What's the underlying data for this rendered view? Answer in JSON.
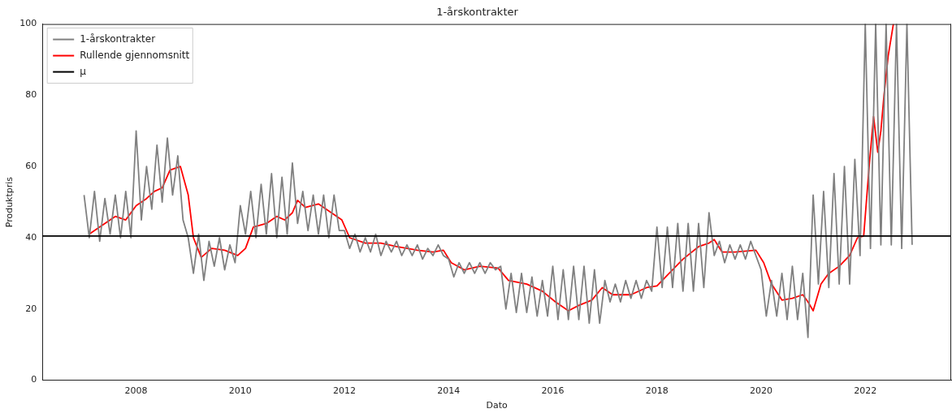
{
  "chart_data": {
    "type": "line",
    "title": "1-årskontrakter",
    "xlabel": "Dato",
    "ylabel": "Produktpris",
    "xlim": [
      2006.2,
      2023.65
    ],
    "xticks": [
      2008,
      2010,
      2012,
      2014,
      2016,
      2018,
      2020,
      2022
    ],
    "ylim": [
      0,
      100
    ],
    "yticks": [
      0,
      20,
      40,
      60,
      80,
      100
    ],
    "grid": false,
    "legend": "top left",
    "marker": "none",
    "line_style": "solid",
    "series": [
      {
        "name": "1-årskontrakter",
        "color": "#808080",
        "x": [
          2007.0,
          2007.1,
          2007.2,
          2007.3,
          2007.4,
          2007.5,
          2007.6,
          2007.7,
          2007.8,
          2007.9,
          2008.0,
          2008.1,
          2008.2,
          2008.3,
          2008.4,
          2008.5,
          2008.6,
          2008.7,
          2008.8,
          2008.9,
          2009.0,
          2009.1,
          2009.2,
          2009.3,
          2009.4,
          2009.5,
          2009.6,
          2009.7,
          2009.8,
          2009.9,
          2010.0,
          2010.1,
          2010.2,
          2010.3,
          2010.4,
          2010.5,
          2010.6,
          2010.7,
          2010.8,
          2010.9,
          2011.0,
          2011.1,
          2011.2,
          2011.3,
          2011.4,
          2011.5,
          2011.6,
          2011.7,
          2011.8,
          2011.9,
          2012.0,
          2012.1,
          2012.2,
          2012.3,
          2012.4,
          2012.5,
          2012.6,
          2012.7,
          2012.8,
          2012.9,
          2013.0,
          2013.1,
          2013.2,
          2013.3,
          2013.4,
          2013.5,
          2013.6,
          2013.7,
          2013.8,
          2013.9,
          2014.0,
          2014.1,
          2014.2,
          2014.3,
          2014.4,
          2014.5,
          2014.6,
          2014.7,
          2014.8,
          2014.9,
          2015.0,
          2015.1,
          2015.2,
          2015.3,
          2015.4,
          2015.5,
          2015.6,
          2015.7,
          2015.8,
          2015.9,
          2016.0,
          2016.1,
          2016.2,
          2016.3,
          2016.4,
          2016.5,
          2016.6,
          2016.7,
          2016.8,
          2016.9,
          2017.0,
          2017.1,
          2017.2,
          2017.3,
          2017.4,
          2017.5,
          2017.6,
          2017.7,
          2017.8,
          2017.9,
          2018.0,
          2018.1,
          2018.2,
          2018.3,
          2018.4,
          2018.5,
          2018.6,
          2018.7,
          2018.8,
          2018.9,
          2019.0,
          2019.1,
          2019.2,
          2019.3,
          2019.4,
          2019.5,
          2019.6,
          2019.7,
          2019.8,
          2019.9,
          2020.0,
          2020.1,
          2020.2,
          2020.3,
          2020.4,
          2020.5,
          2020.6,
          2020.7,
          2020.8,
          2020.9,
          2021.0,
          2021.1,
          2021.2,
          2021.3,
          2021.4,
          2021.5,
          2021.6,
          2021.7,
          2021.8,
          2021.9,
          2022.0,
          2022.1,
          2022.2,
          2022.3,
          2022.4,
          2022.5,
          2022.6,
          2022.7,
          2022.8,
          2022.9
        ],
        "values": [
          52,
          40,
          53,
          39,
          51,
          41,
          52,
          40,
          53,
          40,
          70,
          45,
          60,
          48,
          66,
          50,
          68,
          52,
          63,
          45,
          40,
          30,
          41,
          28,
          39,
          32,
          40,
          31,
          38,
          33,
          49,
          41,
          53,
          40,
          55,
          41,
          58,
          40,
          57,
          41,
          61,
          44,
          53,
          42,
          52,
          41,
          52,
          40,
          52,
          42,
          42,
          37,
          41,
          36,
          40,
          36,
          41,
          35,
          39,
          36,
          39,
          35,
          38,
          35,
          38,
          34,
          37,
          35,
          38,
          35,
          34,
          29,
          33,
          30,
          33,
          30,
          33,
          30,
          33,
          31,
          32,
          20,
          30,
          19,
          30,
          19,
          29,
          18,
          28,
          18,
          32,
          17,
          31,
          17,
          32,
          17,
          32,
          16,
          31,
          16,
          28,
          22,
          27,
          22,
          28,
          23,
          28,
          23,
          28,
          25,
          43,
          26,
          43,
          26,
          44,
          25,
          44,
          25,
          44,
          26,
          47,
          35,
          39,
          33,
          38,
          34,
          38,
          34,
          39,
          35,
          31,
          18,
          28,
          18,
          30,
          17,
          32,
          17,
          30,
          12,
          52,
          27,
          53,
          26,
          58,
          27,
          60,
          27,
          62,
          35,
          100,
          37,
          100,
          38,
          100,
          38,
          100,
          37,
          100,
          38
        ]
      },
      {
        "name": "Rullende gjennomsnitt",
        "color": "#ff0000",
        "x": [
          2007.1,
          2007.3,
          2007.6,
          2007.8,
          2008.0,
          2008.2,
          2008.35,
          2008.5,
          2008.65,
          2008.85,
          2009.0,
          2009.1,
          2009.25,
          2009.45,
          2009.7,
          2009.95,
          2010.1,
          2010.25,
          2010.5,
          2010.7,
          2010.85,
          2011.0,
          2011.1,
          2011.25,
          2011.5,
          2011.75,
          2011.95,
          2012.1,
          2012.4,
          2012.7,
          2013.0,
          2013.4,
          2013.7,
          2013.9,
          2014.05,
          2014.3,
          2014.6,
          2014.95,
          2015.15,
          2015.5,
          2015.8,
          2016.05,
          2016.3,
          2016.5,
          2016.75,
          2016.95,
          2017.15,
          2017.5,
          2017.8,
          2018.0,
          2018.2,
          2018.5,
          2018.8,
          2019.0,
          2019.1,
          2019.25,
          2019.5,
          2019.9,
          2020.05,
          2020.2,
          2020.4,
          2020.6,
          2020.8,
          2020.9,
          2021.0,
          2021.15,
          2021.3,
          2021.5,
          2021.7,
          2021.85,
          2021.97,
          2022.08,
          2022.16,
          2022.24,
          2022.3,
          2022.36,
          2022.44,
          2022.54
        ],
        "values": [
          41,
          43,
          46,
          45,
          49,
          51,
          53,
          54,
          59,
          60,
          52,
          40,
          34.5,
          37,
          36.5,
          35,
          37,
          43,
          44,
          46,
          45,
          47,
          50.5,
          48.5,
          49.5,
          47,
          45,
          40,
          38.5,
          38.5,
          37.5,
          36.5,
          36,
          36.5,
          33,
          31,
          32,
          31.5,
          28,
          27,
          25,
          22,
          19.5,
          21,
          22.5,
          26,
          24,
          24,
          26,
          26.5,
          29.5,
          34,
          37.5,
          38.5,
          39.5,
          36,
          36,
          36.5,
          33,
          27,
          22.5,
          23,
          24,
          22,
          19.5,
          27,
          30,
          32,
          35,
          40,
          40.5,
          61,
          74,
          64,
          70,
          80,
          91,
          100
        ]
      }
    ],
    "ref_lines": [
      {
        "axis": "y",
        "value": 40.5,
        "label": "μ",
        "color": "#000000",
        "line_style": "solid"
      }
    ]
  }
}
